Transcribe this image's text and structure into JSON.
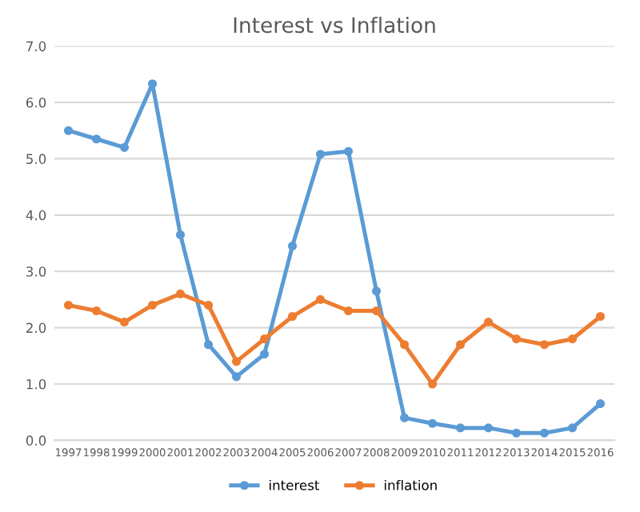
{
  "chart_data": {
    "type": "line",
    "title": "Interest vs Inflation",
    "categories": [
      "1997",
      "1998",
      "1999",
      "2000",
      "2001",
      "2002",
      "2003",
      "2004",
      "2005",
      "2006",
      "2007",
      "2008",
      "2009",
      "2010",
      "2011",
      "2012",
      "2013",
      "2014",
      "2015",
      "2016"
    ],
    "series": [
      {
        "name": "interest",
        "color": "#5b9bd5",
        "values": [
          5.5,
          5.35,
          5.2,
          6.33,
          3.65,
          1.7,
          1.13,
          1.53,
          3.45,
          5.08,
          5.13,
          2.65,
          0.4,
          0.3,
          0.22,
          0.22,
          0.13,
          0.13,
          0.22,
          0.65
        ]
      },
      {
        "name": "inflation",
        "color": "#ed7d31",
        "values": [
          2.4,
          2.3,
          2.1,
          2.4,
          2.6,
          2.4,
          1.4,
          1.8,
          2.2,
          2.5,
          2.3,
          2.3,
          1.7,
          1.0,
          1.7,
          2.1,
          1.8,
          1.7,
          1.8,
          2.2
        ]
      }
    ],
    "ylim": [
      0,
      7
    ],
    "yticks": [
      {
        "value": 0,
        "label": "0.0"
      },
      {
        "value": 1,
        "label": "1.0"
      },
      {
        "value": 2,
        "label": "2.0"
      },
      {
        "value": 3,
        "label": "3.0"
      },
      {
        "value": 4,
        "label": "4.0"
      },
      {
        "value": 5,
        "label": "5.0"
      },
      {
        "value": 6,
        "label": "6.0"
      },
      {
        "value": 7,
        "label": "7.0"
      }
    ],
    "grid": "y",
    "legend": "bottom",
    "marker": "circle",
    "line_style": "solid"
  }
}
